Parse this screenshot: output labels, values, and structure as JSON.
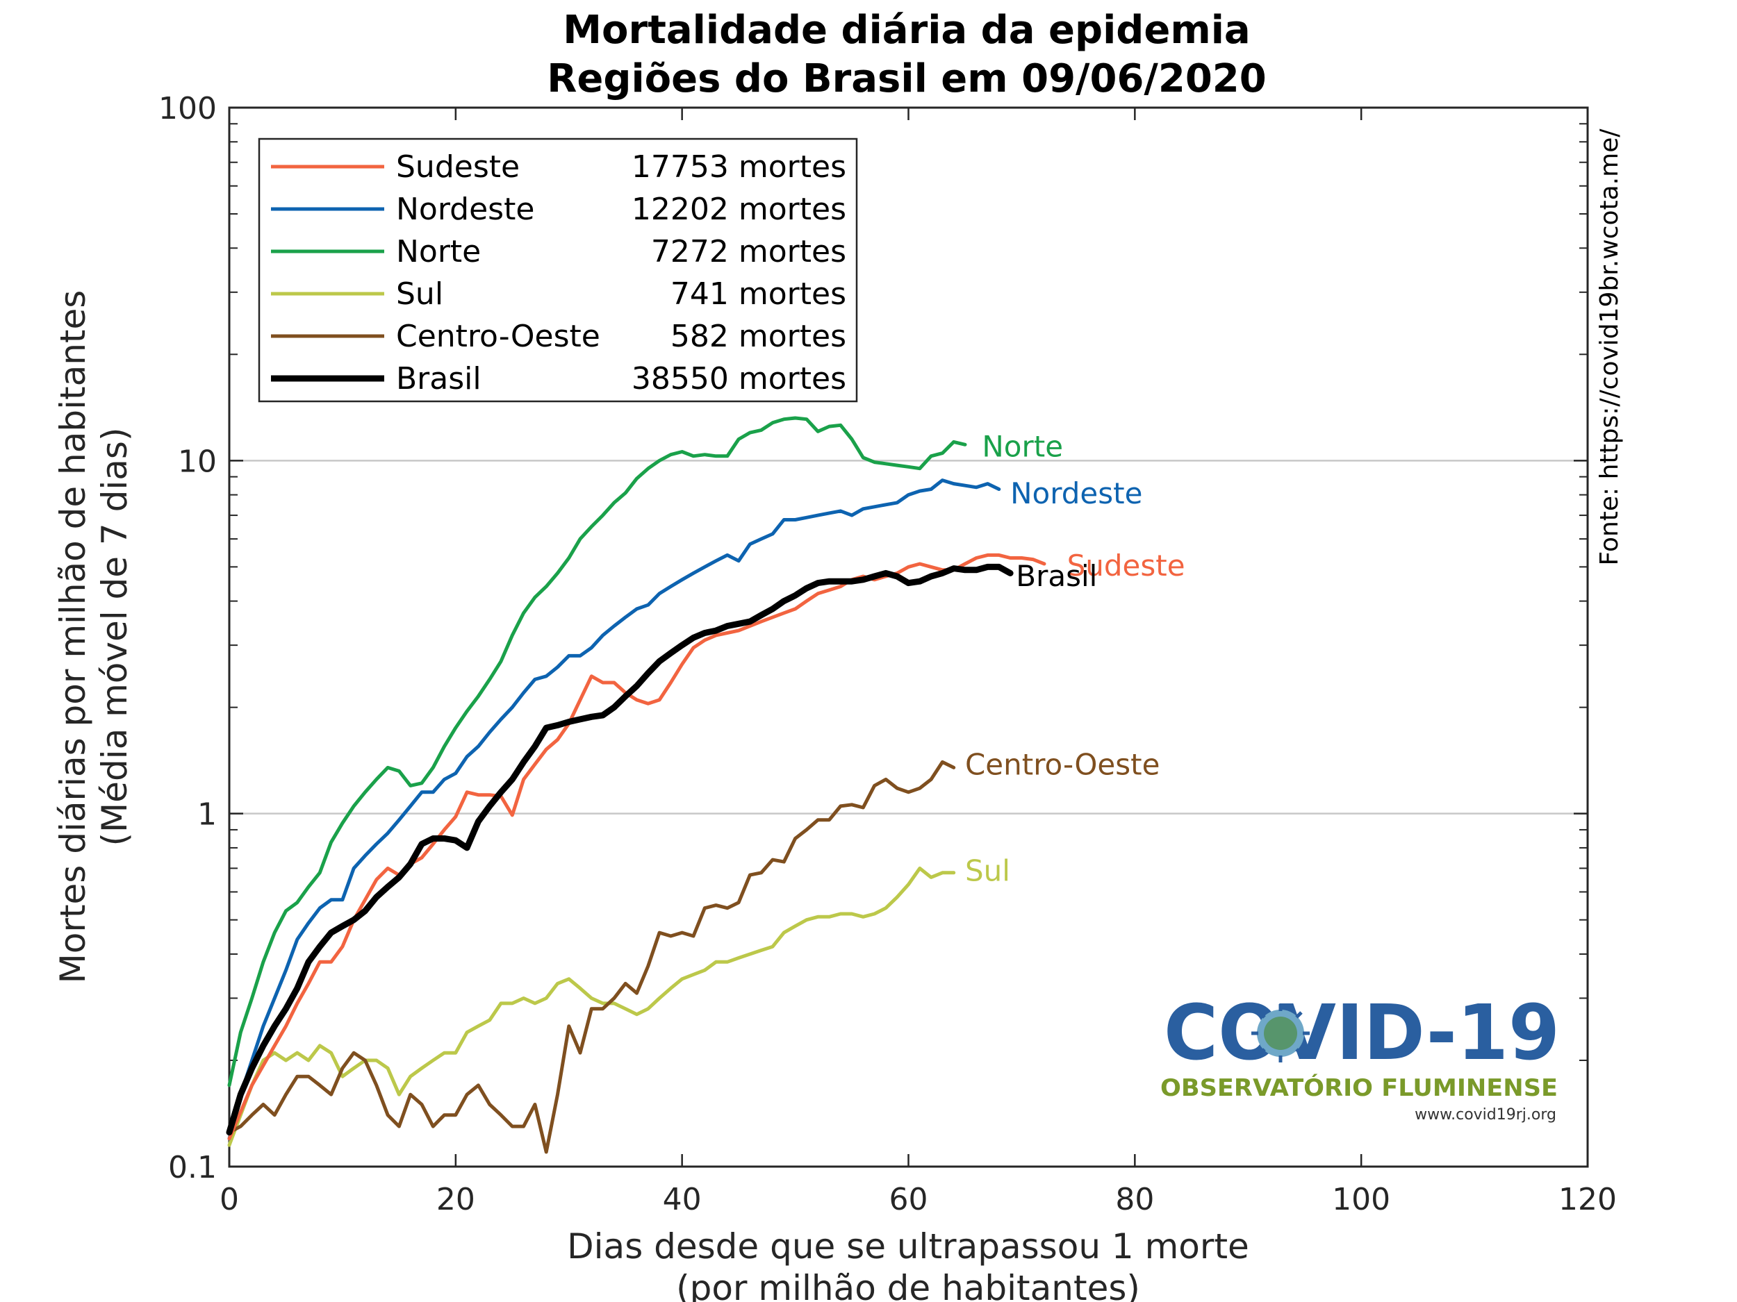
{
  "chart_data": {
    "type": "line",
    "title": "Mortalidade diária da epidemia",
    "subtitle": "Regiões do Brasil em 09/06/2020",
    "xlabel_line1": "Dias desde que se ultrapassou 1 morte",
    "xlabel_line2": "(por milhão de habitantes)",
    "ylabel_line1": "Mortes diárias por milhão de habitantes",
    "ylabel_line2": "(Média móvel de 7 dias)",
    "x_scale": "linear",
    "y_scale": "log",
    "xlim": [
      0,
      120
    ],
    "ylim": [
      0.1,
      100
    ],
    "xticks": [
      0,
      20,
      40,
      60,
      80,
      100,
      120
    ],
    "yticks": [
      0.1,
      1,
      10,
      100
    ],
    "ytick_labels": [
      "0.1",
      "1",
      "10",
      "100"
    ],
    "grid": "horizontal at decades",
    "legend_placement": "top-left",
    "source_note": "Fonte: https://covid19br.wcota.me/",
    "series": [
      {
        "name": "Sudeste",
        "deaths_label": "17753 mortes",
        "color": "#f26440",
        "width": "normal",
        "x": [
          0,
          2,
          4,
          5,
          6,
          7,
          8,
          9,
          10,
          11,
          12,
          13,
          14,
          15,
          16,
          17,
          18,
          19,
          20,
          21,
          22,
          23,
          24,
          25,
          26,
          27,
          28,
          29,
          30,
          31,
          32,
          33,
          34,
          35,
          36,
          37,
          38,
          39,
          40,
          41,
          42,
          43,
          44,
          45,
          46,
          47,
          48,
          49,
          50,
          51,
          52,
          53,
          54,
          55,
          56,
          57,
          58,
          59,
          60,
          61,
          62,
          63,
          64,
          65,
          66,
          67,
          68,
          69,
          70,
          71,
          72
        ],
        "y": [
          0.12,
          0.17,
          0.22,
          0.25,
          0.29,
          0.33,
          0.38,
          0.38,
          0.42,
          0.5,
          0.57,
          0.65,
          0.7,
          0.67,
          0.72,
          0.75,
          0.82,
          0.9,
          0.98,
          1.15,
          1.13,
          1.13,
          1.12,
          0.99,
          1.25,
          1.38,
          1.52,
          1.62,
          1.8,
          2.1,
          2.45,
          2.35,
          2.35,
          2.2,
          2.1,
          2.05,
          2.1,
          2.35,
          2.65,
          2.95,
          3.1,
          3.2,
          3.25,
          3.3,
          3.4,
          3.5,
          3.6,
          3.7,
          3.8,
          4.0,
          4.2,
          4.3,
          4.4,
          4.6,
          4.7,
          4.6,
          4.7,
          4.8,
          5.0,
          5.1,
          5.0,
          4.9,
          4.9,
          5.1,
          5.3,
          5.4,
          5.4,
          5.3,
          5.3,
          5.25,
          5.1
        ]
      },
      {
        "name": "Nordeste",
        "deaths_label": "12202 mortes",
        "color": "#0d63b0",
        "width": "normal",
        "x": [
          0,
          1,
          2,
          3,
          4,
          5,
          6,
          7,
          8,
          9,
          10,
          11,
          12,
          13,
          14,
          15,
          16,
          17,
          18,
          19,
          20,
          21,
          22,
          23,
          24,
          25,
          26,
          27,
          28,
          29,
          30,
          31,
          32,
          33,
          34,
          35,
          36,
          37,
          38,
          39,
          40,
          41,
          42,
          43,
          44,
          45,
          46,
          47,
          48,
          49,
          50,
          51,
          52,
          53,
          54,
          55,
          56,
          57,
          58,
          59,
          60,
          61,
          62,
          63,
          64,
          65,
          66,
          67,
          68
        ],
        "y": [
          0.12,
          0.16,
          0.2,
          0.25,
          0.3,
          0.36,
          0.44,
          0.49,
          0.54,
          0.57,
          0.57,
          0.7,
          0.76,
          0.82,
          0.88,
          0.96,
          1.05,
          1.15,
          1.15,
          1.25,
          1.3,
          1.45,
          1.55,
          1.7,
          1.85,
          2.0,
          2.2,
          2.4,
          2.45,
          2.6,
          2.8,
          2.8,
          2.95,
          3.2,
          3.4,
          3.6,
          3.8,
          3.9,
          4.2,
          4.4,
          4.6,
          4.8,
          5.0,
          5.2,
          5.4,
          5.2,
          5.8,
          6.0,
          6.2,
          6.8,
          6.8,
          6.9,
          7.0,
          7.1,
          7.2,
          7.0,
          7.3,
          7.4,
          7.5,
          7.6,
          8.0,
          8.2,
          8.3,
          8.8,
          8.6,
          8.5,
          8.4,
          8.6,
          8.3
        ]
      },
      {
        "name": "Norte",
        "deaths_label": "7272 mortes",
        "color": "#1aa14a",
        "width": "normal",
        "x": [
          0,
          1,
          2,
          3,
          4,
          5,
          6,
          7,
          8,
          9,
          10,
          11,
          12,
          13,
          14,
          15,
          16,
          17,
          18,
          19,
          20,
          21,
          22,
          23,
          24,
          25,
          26,
          27,
          28,
          29,
          30,
          31,
          32,
          33,
          34,
          35,
          36,
          37,
          38,
          39,
          40,
          41,
          42,
          43,
          44,
          45,
          46,
          47,
          48,
          49,
          50,
          51,
          52,
          53,
          54,
          55,
          56,
          57,
          58,
          59,
          60,
          61,
          62,
          63,
          64,
          65
        ],
        "y": [
          0.17,
          0.24,
          0.3,
          0.38,
          0.46,
          0.53,
          0.56,
          0.62,
          0.68,
          0.83,
          0.94,
          1.05,
          1.15,
          1.25,
          1.35,
          1.32,
          1.2,
          1.22,
          1.35,
          1.55,
          1.75,
          1.95,
          2.15,
          2.4,
          2.7,
          3.2,
          3.7,
          4.1,
          4.4,
          4.8,
          5.3,
          6.0,
          6.5,
          7.0,
          7.6,
          8.1,
          8.9,
          9.5,
          10.0,
          10.4,
          10.6,
          10.3,
          10.4,
          10.3,
          10.3,
          11.5,
          12.0,
          12.2,
          12.8,
          13.1,
          13.2,
          13.1,
          12.1,
          12.5,
          12.6,
          11.5,
          10.2,
          9.9,
          9.8,
          9.7,
          9.6,
          9.5,
          10.3,
          10.5,
          11.3,
          11.1
        ]
      },
      {
        "name": "Sul",
        "deaths_label": "741 mortes",
        "color": "#bcc84a",
        "width": "normal",
        "x": [
          0,
          1,
          2,
          3,
          4,
          5,
          6,
          7,
          8,
          9,
          10,
          11,
          12,
          13,
          14,
          15,
          16,
          17,
          18,
          19,
          20,
          21,
          22,
          23,
          24,
          25,
          26,
          27,
          28,
          29,
          30,
          31,
          32,
          33,
          34,
          35,
          36,
          37,
          38,
          39,
          40,
          41,
          42,
          43,
          44,
          45,
          46,
          47,
          48,
          49,
          50,
          51,
          52,
          53,
          54,
          55,
          56,
          57,
          58,
          59,
          60,
          61,
          62,
          63,
          64
        ],
        "y": [
          0.115,
          0.14,
          0.17,
          0.2,
          0.21,
          0.2,
          0.21,
          0.2,
          0.22,
          0.21,
          0.18,
          0.19,
          0.2,
          0.2,
          0.19,
          0.16,
          0.18,
          0.19,
          0.2,
          0.21,
          0.21,
          0.24,
          0.25,
          0.26,
          0.29,
          0.29,
          0.3,
          0.29,
          0.3,
          0.33,
          0.34,
          0.32,
          0.3,
          0.29,
          0.29,
          0.28,
          0.27,
          0.28,
          0.3,
          0.32,
          0.34,
          0.35,
          0.36,
          0.38,
          0.38,
          0.39,
          0.4,
          0.41,
          0.42,
          0.46,
          0.48,
          0.5,
          0.51,
          0.51,
          0.52,
          0.52,
          0.51,
          0.52,
          0.54,
          0.58,
          0.63,
          0.7,
          0.66,
          0.68,
          0.68
        ]
      },
      {
        "name": "Centro-Oeste",
        "deaths_label": "582 mortes",
        "color": "#7f4f1f",
        "width": "normal",
        "x": [
          0,
          1,
          2,
          3,
          4,
          5,
          6,
          7,
          8,
          9,
          10,
          11,
          12,
          13,
          14,
          15,
          16,
          17,
          18,
          19,
          20,
          21,
          22,
          23,
          24,
          25,
          26,
          27,
          28,
          29,
          30,
          31,
          32,
          33,
          34,
          35,
          36,
          37,
          38,
          39,
          40,
          41,
          42,
          43,
          44,
          45,
          46,
          47,
          48,
          49,
          50,
          51,
          52,
          53,
          54,
          55,
          56,
          57,
          58,
          59,
          60,
          61,
          62,
          63,
          64
        ],
        "y": [
          0.125,
          0.13,
          0.14,
          0.15,
          0.14,
          0.16,
          0.18,
          0.18,
          0.17,
          0.16,
          0.19,
          0.21,
          0.2,
          0.17,
          0.14,
          0.13,
          0.16,
          0.15,
          0.13,
          0.14,
          0.14,
          0.16,
          0.17,
          0.15,
          0.14,
          0.13,
          0.13,
          0.15,
          0.11,
          0.16,
          0.25,
          0.21,
          0.28,
          0.28,
          0.3,
          0.33,
          0.31,
          0.37,
          0.46,
          0.45,
          0.46,
          0.45,
          0.54,
          0.55,
          0.54,
          0.56,
          0.67,
          0.68,
          0.74,
          0.73,
          0.85,
          0.9,
          0.96,
          0.96,
          1.05,
          1.06,
          1.04,
          1.2,
          1.25,
          1.18,
          1.15,
          1.18,
          1.25,
          1.4,
          1.35
        ]
      },
      {
        "name": "Brasil",
        "deaths_label": "38550 mortes",
        "color": "#000000",
        "width": "thick",
        "x": [
          0,
          1,
          2,
          3,
          4,
          5,
          6,
          7,
          8,
          9,
          10,
          11,
          12,
          13,
          14,
          15,
          16,
          17,
          18,
          19,
          20,
          21,
          22,
          23,
          24,
          25,
          26,
          27,
          28,
          29,
          30,
          31,
          32,
          33,
          34,
          35,
          36,
          37,
          38,
          39,
          40,
          41,
          42,
          43,
          44,
          45,
          46,
          47,
          48,
          49,
          50,
          51,
          52,
          53,
          54,
          55,
          56,
          57,
          58,
          59,
          60,
          61,
          62,
          63,
          64,
          65,
          66,
          67,
          68,
          69
        ],
        "y": [
          0.125,
          0.16,
          0.19,
          0.22,
          0.25,
          0.28,
          0.32,
          0.38,
          0.42,
          0.46,
          0.48,
          0.5,
          0.53,
          0.58,
          0.62,
          0.66,
          0.72,
          0.82,
          0.85,
          0.85,
          0.84,
          0.8,
          0.95,
          1.05,
          1.15,
          1.25,
          1.4,
          1.55,
          1.75,
          1.78,
          1.82,
          1.85,
          1.88,
          1.9,
          2.0,
          2.15,
          2.3,
          2.5,
          2.7,
          2.85,
          3.0,
          3.15,
          3.25,
          3.3,
          3.4,
          3.45,
          3.5,
          3.65,
          3.8,
          4.0,
          4.15,
          4.35,
          4.5,
          4.55,
          4.55,
          4.55,
          4.6,
          4.7,
          4.8,
          4.7,
          4.5,
          4.55,
          4.7,
          4.8,
          4.95,
          4.9,
          4.9,
          5.0,
          5.0,
          4.8
        ]
      }
    ],
    "end_labels": [
      {
        "text": "Norte",
        "series": "Norte",
        "x": 66.5,
        "y": 11.0
      },
      {
        "text": "Nordeste",
        "series": "Nordeste",
        "x": 69,
        "y": 8.1
      },
      {
        "text": "Sudeste",
        "series": "Sudeste",
        "x": 74,
        "y": 5.05
      },
      {
        "text": "Brasil",
        "series": "Brasil",
        "x": 69.5,
        "y": 4.72
      },
      {
        "text": "Centro-Oeste",
        "series": "Centro-Oeste",
        "x": 65,
        "y": 1.38
      },
      {
        "text": "Sul",
        "series": "Sul",
        "x": 65,
        "y": 0.69
      }
    ]
  },
  "logo": {
    "title": "COVID-19",
    "subtitle": "OBSERVATÓRIO FLUMINENSE",
    "url": "www.covid19rj.org"
  }
}
